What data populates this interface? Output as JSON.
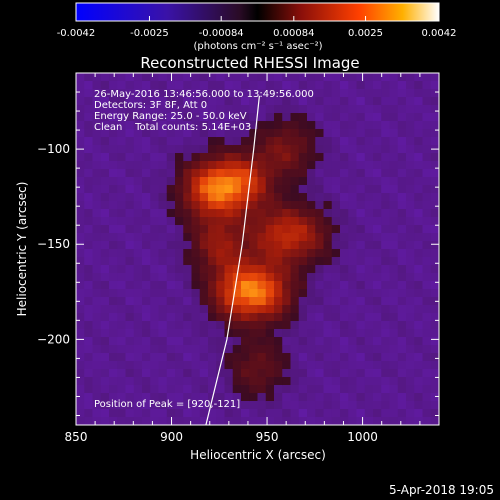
{
  "chart_data": {
    "type": "heatmap",
    "title": "Reconstructed RHESSI Image",
    "xlabel": "Heliocentric X (arcsec)",
    "ylabel": "Heliocentric Y (arcsec)",
    "xlim": [
      850,
      1040
    ],
    "ylim": [
      -245,
      -60
    ],
    "x_ticks": [
      "850",
      "900",
      "950",
      "1000"
    ],
    "y_ticks": [
      "-100",
      "-150",
      "-200"
    ],
    "colorbar": {
      "ticks": [
        "-0.0042",
        "-0.0025",
        "-0.00084",
        "0.00084",
        "0.0025",
        "0.0042"
      ],
      "range": [
        -0.0042,
        0.0042
      ],
      "unit_label": "(photons cm⁻² s⁻¹ asec⁻²)",
      "colormap": "blue-black-red-yellow-white"
    },
    "annotations": [
      "26-May-2016 13:46:56.000 to 13:49:56.000",
      "Detectors: 3F 8F, Att 0",
      "Energy Range: 25.0 - 50.0 keV",
      "Clean    Total counts: 5.14E+03"
    ],
    "peak_label": "Position of Peak = [920,-121]",
    "peak": [
      920,
      -121
    ],
    "limb_curve": [
      [
        918,
        -245
      ],
      [
        929,
        -200
      ],
      [
        937,
        -150
      ],
      [
        943,
        -100
      ],
      [
        946,
        -72
      ]
    ],
    "bright_sources": [
      {
        "x": 920,
        "y": -121,
        "v": 1.0
      },
      {
        "x": 937,
        "y": -118,
        "v": 0.9
      },
      {
        "x": 935,
        "y": -175,
        "v": 0.9
      },
      {
        "x": 950,
        "y": -175,
        "v": 0.8
      },
      {
        "x": 925,
        "y": -150,
        "v": 0.6
      },
      {
        "x": 955,
        "y": -145,
        "v": 0.6
      },
      {
        "x": 970,
        "y": -145,
        "v": 0.5
      },
      {
        "x": 960,
        "y": -100,
        "v": 0.5
      },
      {
        "x": 945,
        "y": -215,
        "v": 0.4
      }
    ]
  },
  "footer": {
    "timestamp": "5-Apr-2018 19:05"
  }
}
